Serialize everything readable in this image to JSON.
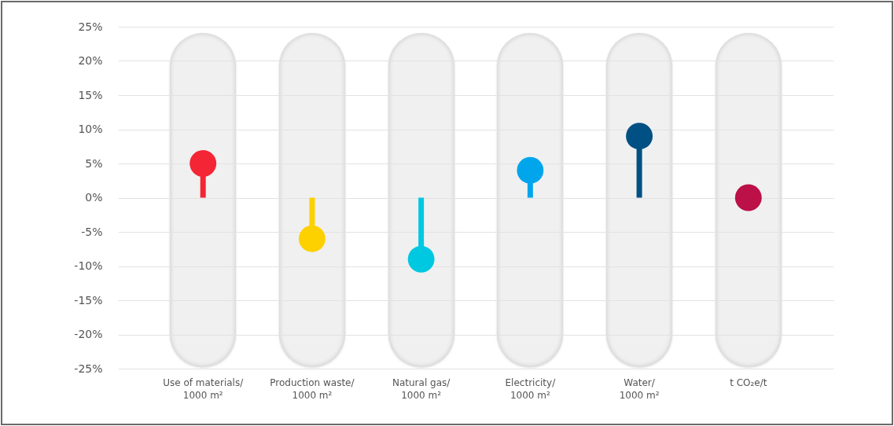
{
  "chart_data": {
    "type": "lollipop",
    "categories": [
      "Use of materials/\n1000 m²",
      "Production waste/\n1000 m²",
      "Natural gas/\n1000 m²",
      "Electricity/\n1000 m²",
      "Water/\n1000 m²",
      "t CO₂e/t"
    ],
    "values": [
      5,
      -6,
      -9,
      4,
      9,
      0
    ],
    "colors": [
      "#f42534",
      "#fdd000",
      "#00c8e1",
      "#00a5ec",
      "#005083",
      "#bb1048"
    ],
    "ylim": [
      -25,
      25
    ],
    "yticks": [
      {
        "value": -25,
        "label": "-25%"
      },
      {
        "value": -20,
        "label": "-20%"
      },
      {
        "value": -15,
        "label": "-15%"
      },
      {
        "value": -10,
        "label": "-10%"
      },
      {
        "value": -5,
        "label": "-5%"
      },
      {
        "value": 0,
        "label": "0%"
      },
      {
        "value": 5,
        "label": "5%"
      },
      {
        "value": 10,
        "label": "10%"
      },
      {
        "value": 15,
        "label": "15%"
      },
      {
        "value": 20,
        "label": "20%"
      },
      {
        "value": 25,
        "label": "25%"
      }
    ],
    "grid": "y"
  }
}
